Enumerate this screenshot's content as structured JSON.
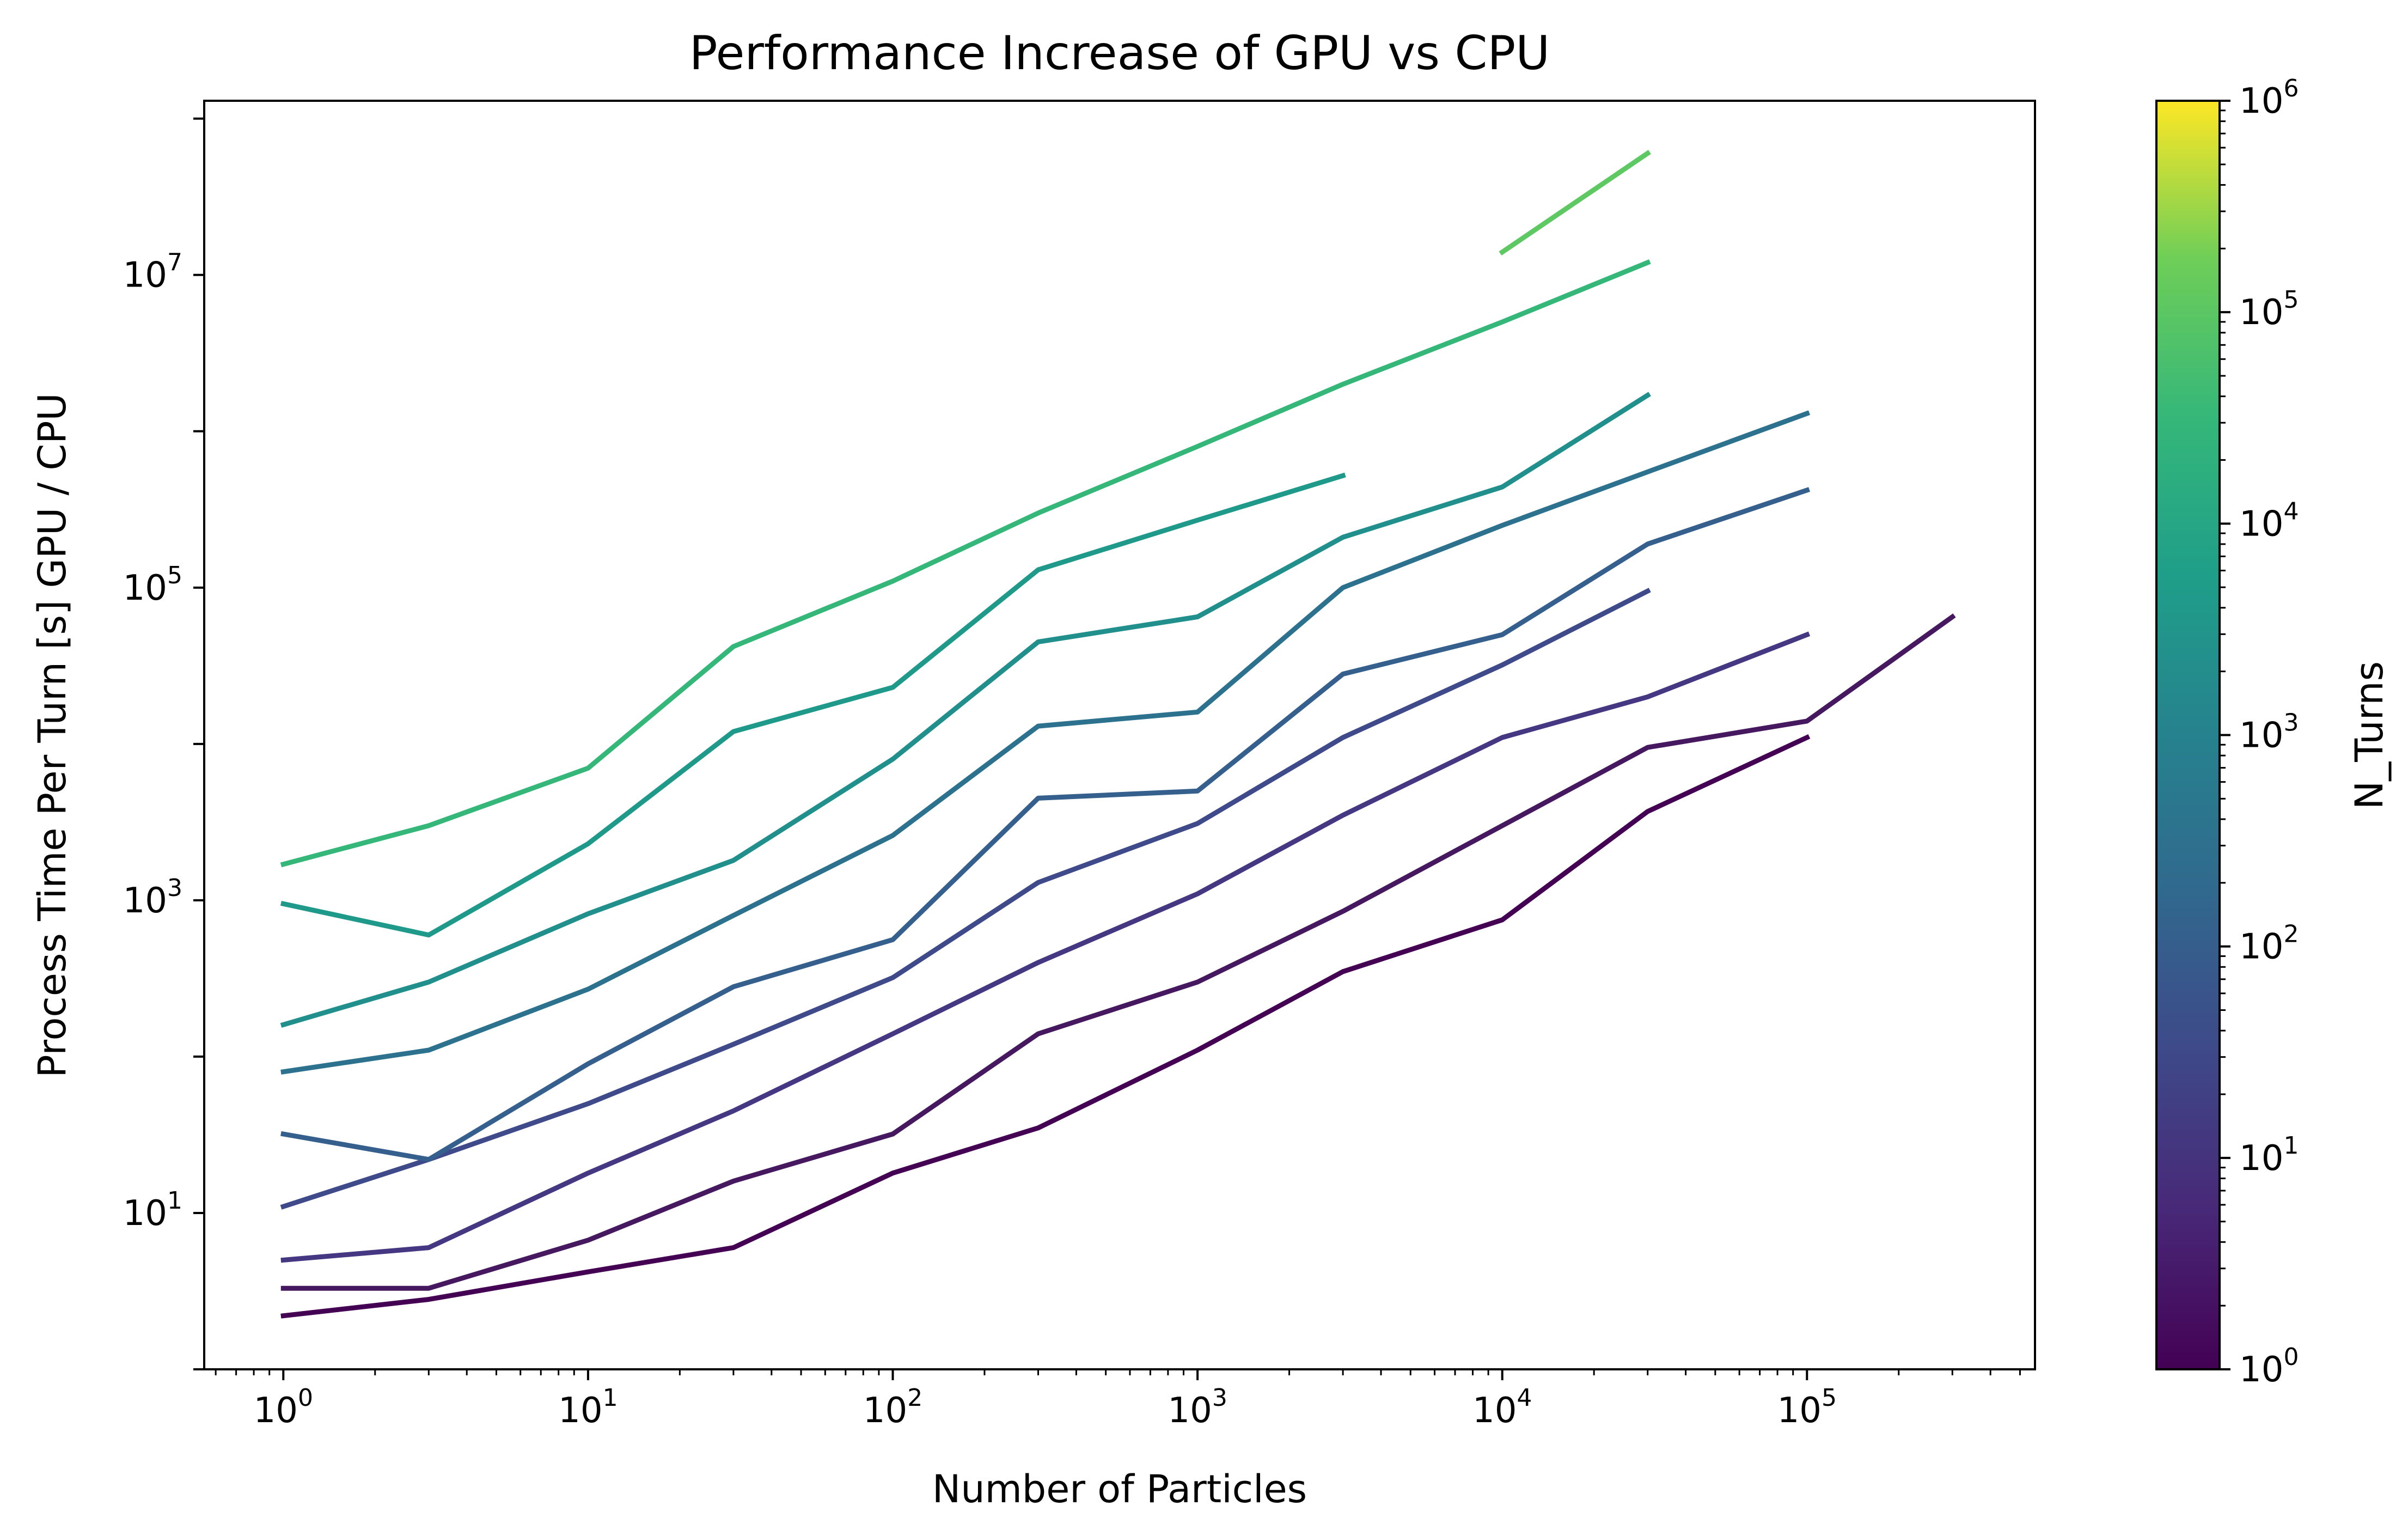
{
  "chart_data": {
    "type": "line",
    "title": "Performance Increase of GPU vs CPU",
    "xlabel": "Number of Particles",
    "ylabel": "Process Time Per Turn [s] GPU / CPU",
    "xscale": "log",
    "yscale": "log",
    "xlim": [
      0.55,
      560000
    ],
    "ylim": [
      1.0,
      130000000
    ],
    "grid": false,
    "legend": "none",
    "x_tick_labels": [
      {
        "value": 1,
        "base": "10",
        "exp": "0"
      },
      {
        "value": 10,
        "base": "10",
        "exp": "1"
      },
      {
        "value": 100,
        "base": "10",
        "exp": "2"
      },
      {
        "value": 1000,
        "base": "10",
        "exp": "3"
      },
      {
        "value": 10000,
        "base": "10",
        "exp": "4"
      },
      {
        "value": 100000,
        "base": "10",
        "exp": "5"
      }
    ],
    "y_tick_labels": [
      {
        "value": 10,
        "base": "10",
        "exp": "1"
      },
      {
        "value": 1000,
        "base": "10",
        "exp": "3"
      },
      {
        "value": 100000,
        "base": "10",
        "exp": "5"
      },
      {
        "value": 10000000,
        "base": "10",
        "exp": "7"
      }
    ],
    "colorbar": {
      "label": "N_Turns",
      "colormap": "viridis",
      "scale": "log",
      "range": [
        1,
        1000000
      ],
      "tick_labels": [
        {
          "value": 1,
          "base": "10",
          "exp": "0"
        },
        {
          "value": 10,
          "base": "10",
          "exp": "1"
        },
        {
          "value": 100,
          "base": "10",
          "exp": "2"
        },
        {
          "value": 1000,
          "base": "10",
          "exp": "3"
        },
        {
          "value": 10000,
          "base": "10",
          "exp": "4"
        },
        {
          "value": 100000,
          "base": "10",
          "exp": "5"
        },
        {
          "value": 1000000,
          "base": "10",
          "exp": "6"
        }
      ]
    },
    "series": [
      {
        "color": "#440154",
        "x": [
          1,
          3,
          10,
          30,
          100,
          300,
          1000,
          3000,
          10000,
          30000,
          100000
        ],
        "y": [
          2.2,
          2.8,
          4.2,
          6.0,
          18,
          35,
          110,
          350,
          750,
          3700,
          11000
        ]
      },
      {
        "color": "#46185f",
        "x": [
          1,
          3,
          10,
          30,
          100,
          300,
          1000,
          3000,
          10000,
          30000,
          100000,
          300000
        ],
        "y": [
          3.3,
          3.3,
          6.7,
          16,
          32,
          140,
          300,
          850,
          3000,
          9500,
          14000,
          65000
        ]
      },
      {
        "color": "#453781",
        "x": [
          1,
          3,
          10,
          30,
          100,
          300,
          1000,
          3000,
          10000,
          30000,
          100000
        ],
        "y": [
          5.0,
          6.0,
          18,
          45,
          140,
          400,
          1100,
          3500,
          11000,
          20000,
          50000
        ]
      },
      {
        "color": "#3e4a89",
        "x": [
          1,
          3,
          10,
          30,
          100,
          300,
          1000,
          3000,
          10000,
          30000
        ],
        "y": [
          11,
          22,
          50,
          120,
          320,
          1300,
          3100,
          11000,
          32000,
          95000
        ]
      },
      {
        "color": "#355f8d",
        "x": [
          1,
          3,
          10,
          30,
          100,
          300,
          1000,
          3000,
          10000,
          30000,
          100000
        ],
        "y": [
          32,
          22,
          90,
          280,
          560,
          4500,
          5000,
          28000,
          50000,
          190000,
          420000
        ]
      },
      {
        "color": "#2c728e",
        "x": [
          1,
          3,
          10,
          30,
          100,
          300,
          1000,
          3000,
          10000,
          30000,
          100000
        ],
        "y": [
          80,
          110,
          270,
          800,
          2600,
          13000,
          16000,
          100000,
          250000,
          550000,
          1300000
        ]
      },
      {
        "color": "#21908d",
        "x": [
          1,
          3,
          10,
          30,
          100,
          300,
          1000,
          3000,
          10000,
          30000
        ],
        "y": [
          160,
          300,
          820,
          1800,
          8000,
          45000,
          65000,
          210000,
          440000,
          1700000
        ]
      },
      {
        "color": "#1f9a8a",
        "x": [
          1,
          3,
          10,
          30,
          100,
          300,
          1000,
          3000
        ],
        "y": [
          950,
          600,
          2300,
          12000,
          23000,
          130000,
          270000,
          520000
        ]
      },
      {
        "color": "#35b779",
        "x": [
          1,
          3,
          10,
          30,
          100,
          300,
          1000,
          3000,
          10000,
          30000
        ],
        "y": [
          1700,
          3000,
          7000,
          42000,
          110000,
          300000,
          800000,
          2000000,
          5000000,
          12000000
        ]
      },
      {
        "color": "#5ec962",
        "x": [
          10000,
          30000
        ],
        "y": [
          14000000,
          60000000
        ]
      }
    ]
  }
}
